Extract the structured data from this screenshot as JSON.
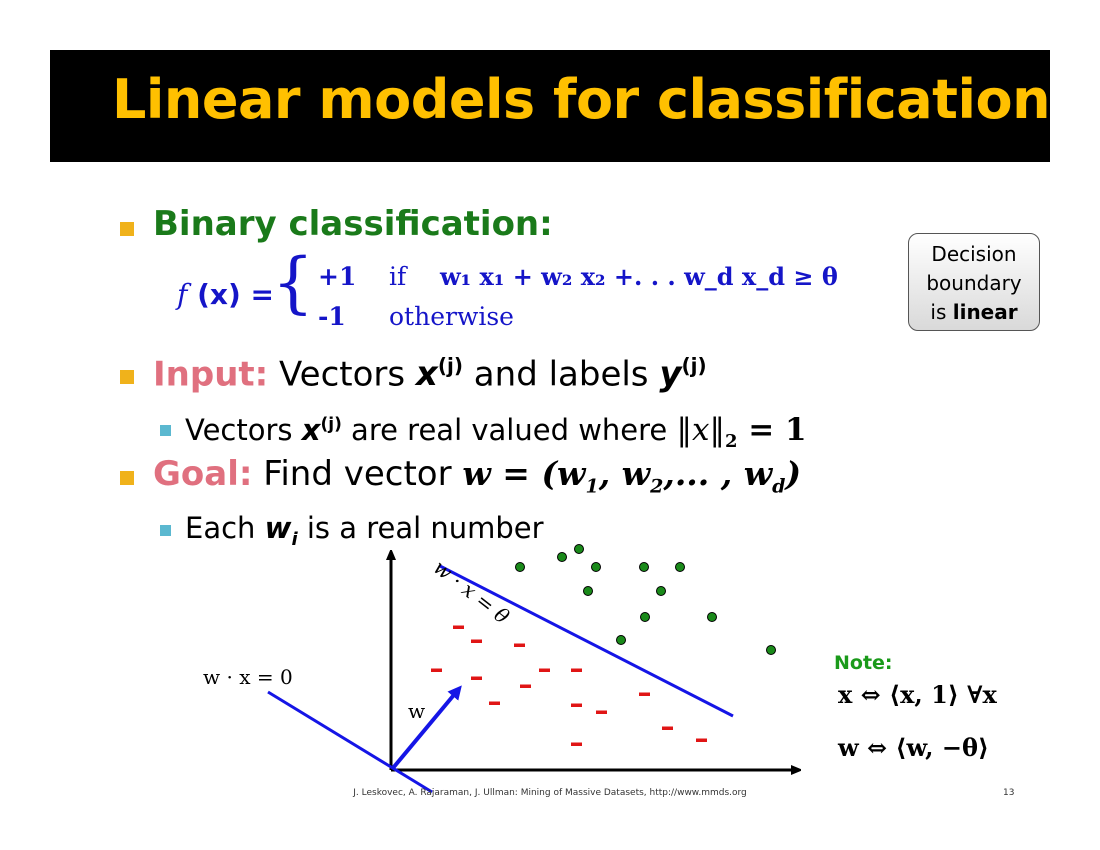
{
  "slide": {
    "title": "Linear models for classification",
    "bullets": {
      "binary": "Binary classification:",
      "input_label": "Input:",
      "input_text_1": " Vectors ",
      "input_x": "x",
      "input_sup_1": "(j)",
      "input_text_2": " and labels ",
      "input_y": "y",
      "input_sup_2": "(j)",
      "sub1_text_1": "Vectors ",
      "sub1_x": "x",
      "sub1_sup": "(j)",
      "sub1_text_2": " are real valued where ",
      "sub1_norm": "‖x‖",
      "sub1_norm_sub": "2",
      "sub1_eq": " = 1",
      "goal_label": "Goal:",
      "goal_text": " Find vector ",
      "goal_vector": "w = (w",
      "goal_v_sub1": "1",
      "goal_v_mid": ", w",
      "goal_v_sub2": "2",
      "goal_v_mid2": ",... , w",
      "goal_v_subd": "d",
      "goal_v_end": ")",
      "sub2_text_1": "Each ",
      "sub2_w": "w",
      "sub2_w_sub": "i",
      "sub2_text_2": " is a real number"
    },
    "formula": {
      "lhs_f": "f",
      "lhs_rest": " (x) =",
      "case1_val": "+1",
      "case1_if": "if",
      "case1_cond": "w₁ x₁ + w₂ x₂ +. . . w_d x_d ≥ θ",
      "case2_val": "-1",
      "case2_cond": "otherwise"
    },
    "callout": {
      "line1": "Decision",
      "line2": "boundary",
      "line3_pre": "is ",
      "line3_bold": "linear"
    },
    "diagram": {
      "label_wx0": "w · x = 0",
      "label_w": "w",
      "label_wx_theta": "w · x = θ",
      "minus_sign": "-",
      "note_label": "Note:",
      "note_line1": "x ⇔ ⟨x, 1⟩   ∀x",
      "note_line2": "w ⇔ ⟨w, −θ⟩",
      "colors": {
        "positive": "#1a8a1a",
        "negative": "#e01515",
        "line": "#1515e6",
        "note": "#1a9a1a"
      },
      "positive_count": 14,
      "negative_count": 16
    },
    "footer": "J. Leskovec, A. Rajaraman, J. Ullman: Mining of Massive Datasets, http://www.mmds.org",
    "page_number": "13"
  }
}
